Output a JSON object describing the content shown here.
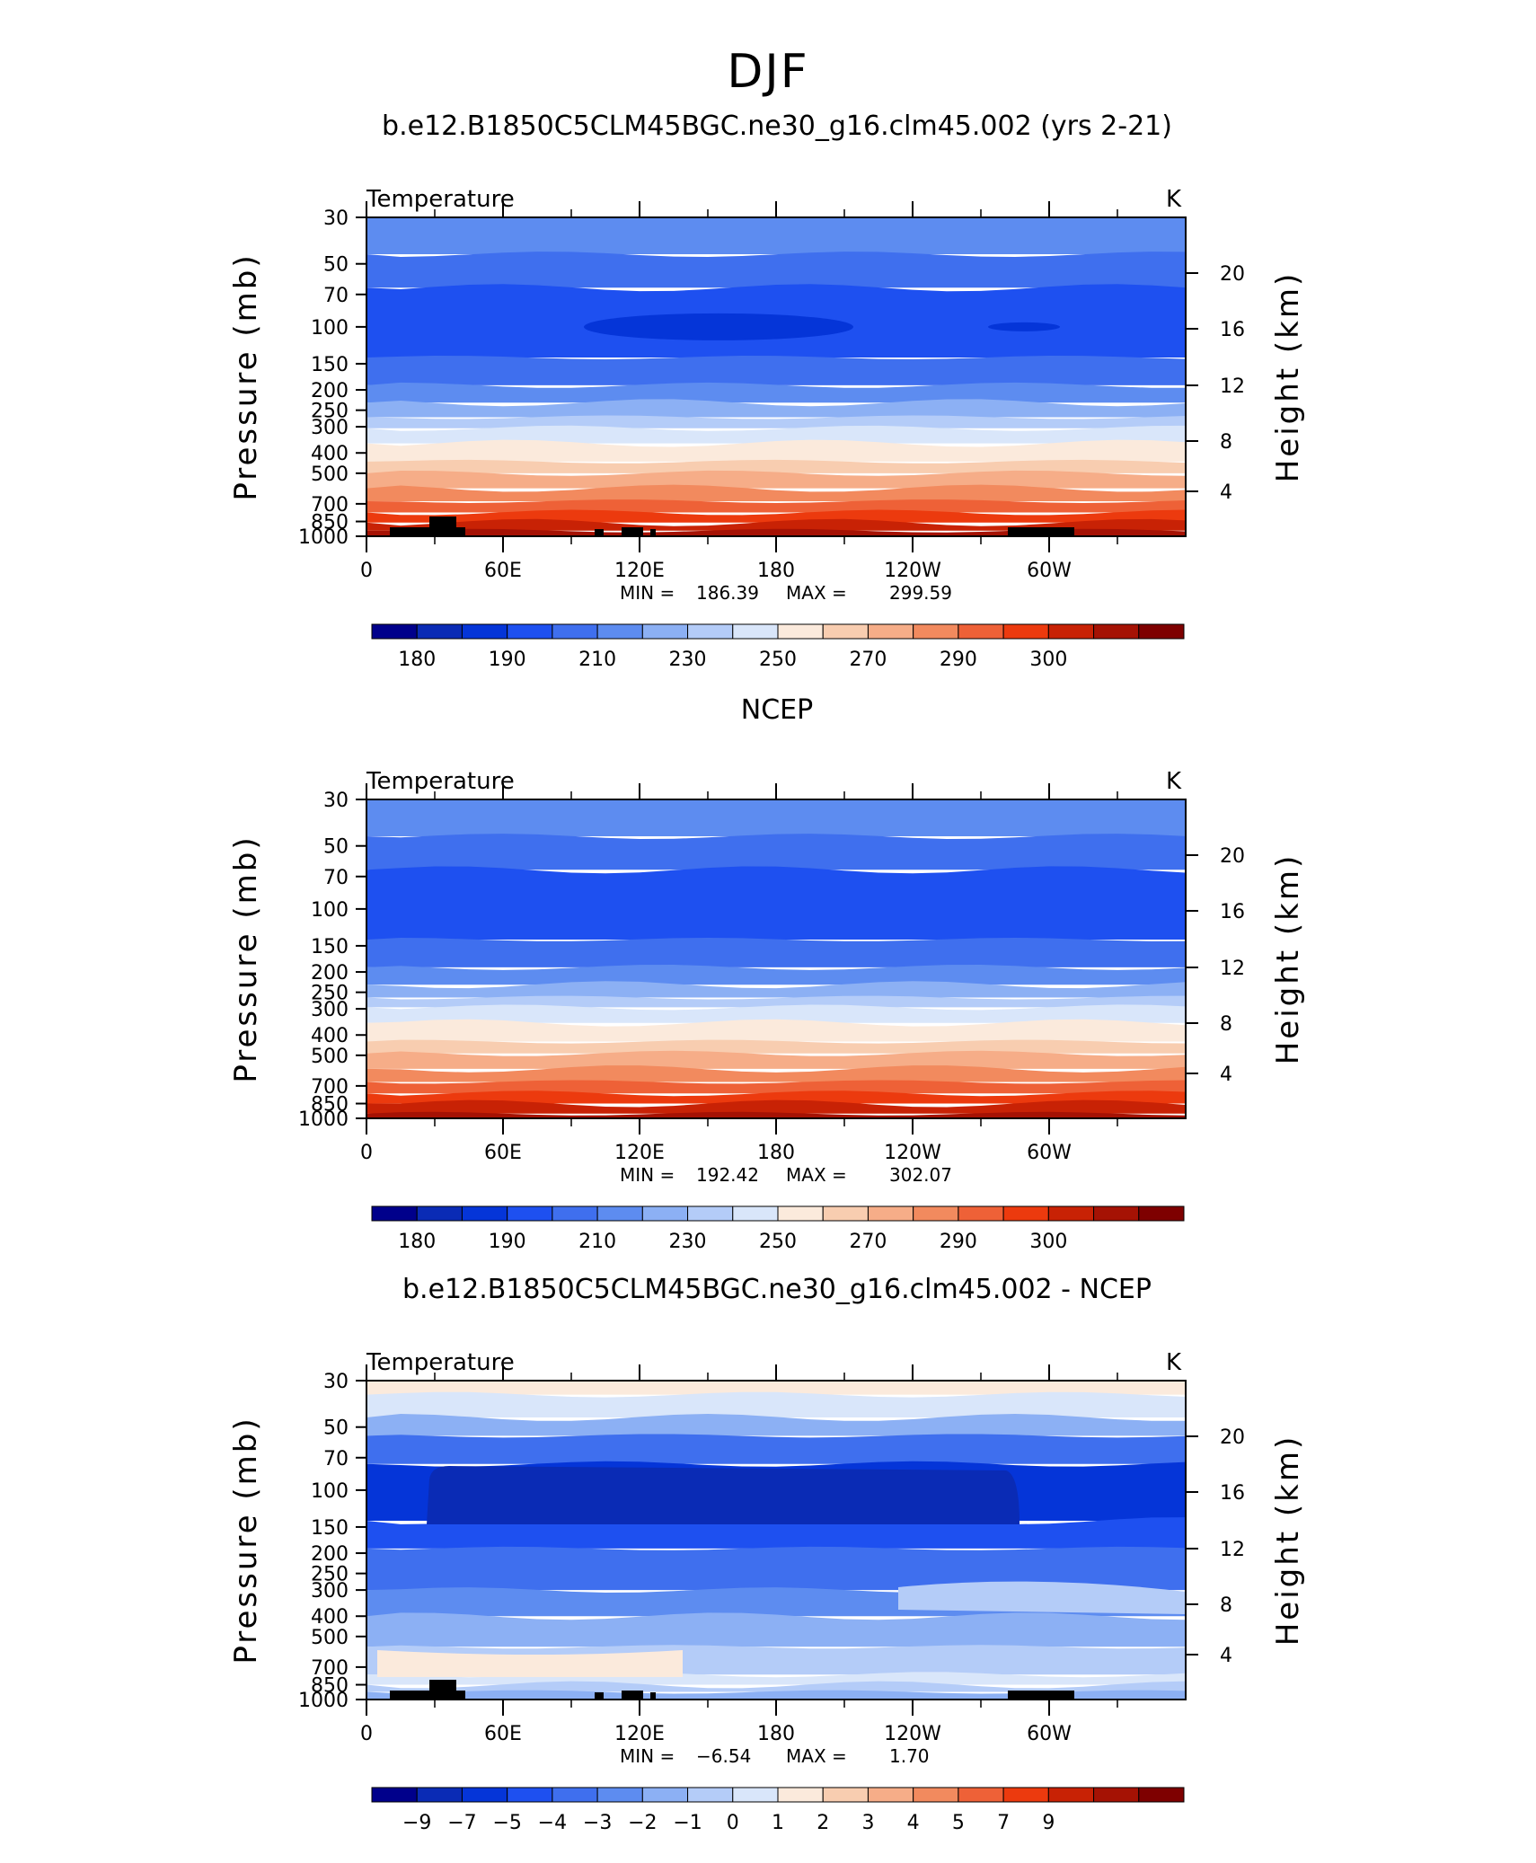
{
  "page": {
    "title": "DJF"
  },
  "chart_data": [
    {
      "type": "contour",
      "title": "b.e12.B1850C5CLM45BGC.ne30_g16.clm45.002 (yrs 2-21)",
      "left_label": "Temperature",
      "right_label": "K",
      "ylabel": "Pressure (mb)",
      "y2label": "Height (km)",
      "xticks": [
        "0",
        "60E",
        "120E",
        "180",
        "120W",
        "60W"
      ],
      "yticks": [
        "30",
        "50",
        "70",
        "100",
        "150",
        "200",
        "250",
        "300",
        "400",
        "500",
        "700",
        "850",
        "1000"
      ],
      "y2ticks": [
        "20",
        "16",
        "12",
        "8",
        "4"
      ],
      "min_label": "MIN =",
      "min": "186.39",
      "max_label": "MAX =",
      "max": "299.59",
      "colorbar": {
        "colors": [
          "#00008b",
          "#0a2bb5",
          "#0535d8",
          "#1e50f0",
          "#3f6fee",
          "#5d8cf0",
          "#8cb0f4",
          "#b4ccf8",
          "#d9e6fa",
          "#fbeadc",
          "#f8cdb0",
          "#f6ad88",
          "#f28a5e",
          "#ee6137",
          "#ec3a0e",
          "#c82205",
          "#a51204",
          "#7e0000"
        ],
        "labels": [
          "180",
          "190",
          "210",
          "230",
          "250",
          "270",
          "290",
          "300"
        ]
      },
      "levels": [
        {
          "p": 30,
          "c": 5
        },
        {
          "p": 45,
          "c": 4
        },
        {
          "p": 65,
          "c": 3
        },
        {
          "p": 140,
          "c": 4
        },
        {
          "p": 190,
          "c": 5
        },
        {
          "p": 230,
          "c": 6
        },
        {
          "p": 270,
          "c": 7
        },
        {
          "p": 305,
          "c": 8
        },
        {
          "p": 360,
          "c": 9
        },
        {
          "p": 440,
          "c": 10
        },
        {
          "p": 500,
          "c": 11
        },
        {
          "p": 590,
          "c": 12
        },
        {
          "p": 680,
          "c": 13
        },
        {
          "p": 770,
          "c": 14
        },
        {
          "p": 860,
          "c": 15
        },
        {
          "p": 940,
          "c": 16
        }
      ]
    },
    {
      "type": "contour",
      "title": "NCEP",
      "left_label": "Temperature",
      "right_label": "K",
      "ylabel": "Pressure (mb)",
      "y2label": "Height (km)",
      "xticks": [
        "0",
        "60E",
        "120E",
        "180",
        "120W",
        "60W"
      ],
      "yticks": [
        "30",
        "50",
        "70",
        "100",
        "150",
        "200",
        "250",
        "300",
        "400",
        "500",
        "700",
        "850",
        "1000"
      ],
      "y2ticks": [
        "20",
        "16",
        "12",
        "8",
        "4"
      ],
      "min_label": "MIN =",
      "min": "192.42",
      "max_label": "MAX =",
      "max": "302.07",
      "colorbar": {
        "colors": [
          "#00008b",
          "#0a2bb5",
          "#0535d8",
          "#1e50f0",
          "#3f6fee",
          "#5d8cf0",
          "#8cb0f4",
          "#b4ccf8",
          "#d9e6fa",
          "#fbeadc",
          "#f8cdb0",
          "#f6ad88",
          "#f28a5e",
          "#ee6137",
          "#ec3a0e",
          "#c82205",
          "#a51204",
          "#7e0000"
        ],
        "labels": [
          "180",
          "190",
          "210",
          "230",
          "250",
          "270",
          "290",
          "300"
        ]
      },
      "levels": [
        {
          "p": 30,
          "c": 5
        },
        {
          "p": 45,
          "c": 4
        },
        {
          "p": 65,
          "c": 3
        },
        {
          "p": 140,
          "c": 4
        },
        {
          "p": 190,
          "c": 5
        },
        {
          "p": 230,
          "c": 6
        },
        {
          "p": 265,
          "c": 7
        },
        {
          "p": 295,
          "c": 8
        },
        {
          "p": 350,
          "c": 9
        },
        {
          "p": 430,
          "c": 10
        },
        {
          "p": 490,
          "c": 11
        },
        {
          "p": 580,
          "c": 12
        },
        {
          "p": 670,
          "c": 13
        },
        {
          "p": 760,
          "c": 14
        },
        {
          "p": 850,
          "c": 15
        },
        {
          "p": 950,
          "c": 16
        }
      ]
    },
    {
      "type": "contour",
      "title": "b.e12.B1850C5CLM45BGC.ne30_g16.clm45.002 - NCEP",
      "left_label": "Temperature",
      "right_label": "K",
      "ylabel": "Pressure (mb)",
      "y2label": "Height (km)",
      "xticks": [
        "0",
        "60E",
        "120E",
        "180",
        "120W",
        "60W"
      ],
      "yticks": [
        "30",
        "50",
        "70",
        "100",
        "150",
        "200",
        "250",
        "300",
        "400",
        "500",
        "700",
        "850",
        "1000"
      ],
      "y2ticks": [
        "20",
        "16",
        "12",
        "8",
        "4"
      ],
      "min_label": "MIN =",
      "min": "−6.54",
      "max_label": "MAX =",
      "max": "1.70",
      "colorbar": {
        "colors": [
          "#00008b",
          "#0a2bb5",
          "#0535d8",
          "#1e50f0",
          "#3f6fee",
          "#5d8cf0",
          "#8cb0f4",
          "#b4ccf8",
          "#d9e6fa",
          "#fbeadc",
          "#f8cdb0",
          "#f6ad88",
          "#f28a5e",
          "#ee6137",
          "#ec3a0e",
          "#c82205",
          "#a51204",
          "#7e0000"
        ],
        "labels": [
          "−9",
          "−7",
          "−5",
          "−4",
          "−3",
          "−2",
          "−1",
          "0",
          "1",
          "2",
          "3",
          "4",
          "5",
          "7",
          "9"
        ]
      },
      "levels": [
        {
          "p": 30,
          "c": 9
        },
        {
          "p": 35,
          "c": 8
        },
        {
          "p": 45,
          "c": 6
        },
        {
          "p": 55,
          "c": 4
        },
        {
          "p": 75,
          "c": 2
        },
        {
          "p": 140,
          "c": 3
        },
        {
          "p": 190,
          "c": 4
        },
        {
          "p": 300,
          "c": 5
        },
        {
          "p": 400,
          "c": 6
        },
        {
          "p": 560,
          "c": 7
        },
        {
          "p": 760,
          "c": 8
        },
        {
          "p": 850,
          "c": 7
        },
        {
          "p": 920,
          "c": 6
        }
      ]
    }
  ]
}
